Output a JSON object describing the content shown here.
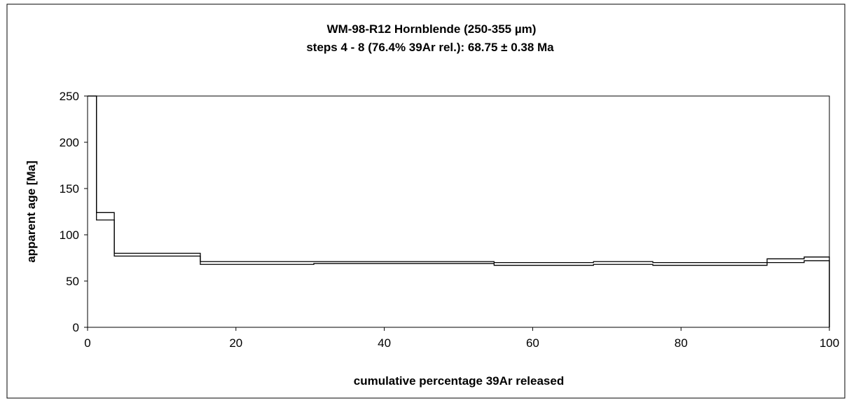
{
  "chart_data": {
    "type": "step",
    "title": "WM-98-R12 Hornblende (250-355 µm)",
    "subtitle": "steps 4 - 8 (76.4% 39Ar rel.): 68.75 ± 0.38 Ma",
    "xlabel": "cumulative percentage 39Ar released",
    "ylabel": "apparent age [Ma]",
    "xlim": [
      0,
      100
    ],
    "ylim": [
      0,
      250
    ],
    "x_ticks": [
      0,
      20,
      40,
      60,
      80,
      100
    ],
    "y_ticks": [
      0,
      50,
      100,
      150,
      200,
      250
    ],
    "grid": false,
    "legend": "none",
    "line_color": "#000000",
    "steps": [
      {
        "x_start": 0.0,
        "x_end": 1.2,
        "age_low": 250,
        "age_high": 250
      },
      {
        "x_start": 1.2,
        "x_end": 3.6,
        "age_low": 116,
        "age_high": 124
      },
      {
        "x_start": 3.6,
        "x_end": 15.2,
        "age_low": 77,
        "age_high": 80
      },
      {
        "x_start": 15.2,
        "x_end": 30.5,
        "age_low": 68,
        "age_high": 71
      },
      {
        "x_start": 30.5,
        "x_end": 54.8,
        "age_low": 69,
        "age_high": 71
      },
      {
        "x_start": 54.8,
        "x_end": 68.2,
        "age_low": 67,
        "age_high": 70
      },
      {
        "x_start": 68.2,
        "x_end": 76.2,
        "age_low": 68,
        "age_high": 71
      },
      {
        "x_start": 76.2,
        "x_end": 91.6,
        "age_low": 67,
        "age_high": 70
      },
      {
        "x_start": 91.6,
        "x_end": 96.6,
        "age_low": 70,
        "age_high": 74
      },
      {
        "x_start": 96.6,
        "x_end": 100.0,
        "age_low": 72,
        "age_high": 76
      }
    ]
  }
}
